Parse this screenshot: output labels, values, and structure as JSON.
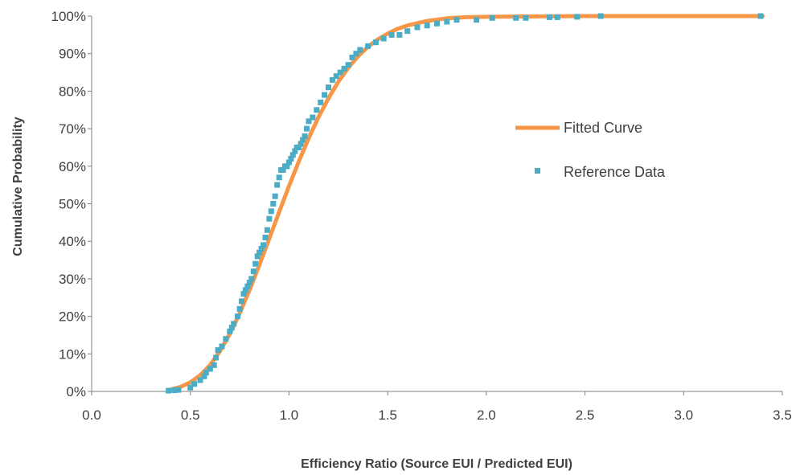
{
  "chart_data": {
    "type": "scatter",
    "xlabel": "Efficiency Ratio (Source EUI / Predicted EUI)",
    "ylabel": "Cumulative  Probability",
    "xlim": [
      0,
      3.5
    ],
    "ylim": [
      0,
      1
    ],
    "x_ticks": [
      "0.0",
      "0.5",
      "1.0",
      "1.5",
      "2.0",
      "2.5",
      "3.0",
      "3.5"
    ],
    "y_ticks": [
      "0%",
      "10%",
      "20%",
      "30%",
      "40%",
      "50%",
      "60%",
      "70%",
      "80%",
      "90%",
      "100%"
    ],
    "grid": false,
    "legend_position": "center-right",
    "series": [
      {
        "name": "Fitted Curve",
        "kind": "line",
        "color": "#f79646",
        "x": [
          0.4,
          0.45,
          0.5,
          0.55,
          0.6,
          0.65,
          0.7,
          0.75,
          0.8,
          0.85,
          0.9,
          0.95,
          1.0,
          1.05,
          1.1,
          1.15,
          1.2,
          1.25,
          1.3,
          1.35,
          1.4,
          1.45,
          1.5,
          1.55,
          1.6,
          1.7,
          1.8,
          1.9,
          2.0,
          2.2,
          2.5,
          3.0,
          3.4
        ],
        "y": [
          0.005,
          0.012,
          0.024,
          0.043,
          0.07,
          0.107,
          0.153,
          0.208,
          0.27,
          0.337,
          0.407,
          0.478,
          0.547,
          0.613,
          0.675,
          0.731,
          0.781,
          0.825,
          0.862,
          0.893,
          0.918,
          0.938,
          0.953,
          0.966,
          0.975,
          0.987,
          0.994,
          0.997,
          0.998,
          0.999,
          1.0,
          1.0,
          1.0
        ]
      },
      {
        "name": "Reference Data",
        "kind": "points",
        "color": "#4bacc6",
        "x": [
          0.39,
          0.42,
          0.44,
          0.5,
          0.52,
          0.55,
          0.57,
          0.58,
          0.6,
          0.62,
          0.63,
          0.64,
          0.66,
          0.68,
          0.7,
          0.71,
          0.72,
          0.74,
          0.75,
          0.76,
          0.77,
          0.78,
          0.79,
          0.8,
          0.81,
          0.82,
          0.83,
          0.84,
          0.85,
          0.86,
          0.87,
          0.88,
          0.89,
          0.9,
          0.91,
          0.92,
          0.93,
          0.94,
          0.95,
          0.96,
          0.97,
          0.98,
          0.99,
          1.0,
          1.01,
          1.02,
          1.03,
          1.04,
          1.05,
          1.06,
          1.07,
          1.08,
          1.09,
          1.1,
          1.12,
          1.14,
          1.16,
          1.18,
          1.2,
          1.22,
          1.24,
          1.26,
          1.28,
          1.3,
          1.32,
          1.34,
          1.36,
          1.4,
          1.44,
          1.48,
          1.52,
          1.56,
          1.6,
          1.65,
          1.7,
          1.75,
          1.8,
          1.85,
          1.95,
          2.03,
          2.15,
          2.2,
          2.32,
          2.36,
          2.46,
          2.58,
          3.39
        ],
        "y": [
          0.002,
          0.003,
          0.004,
          0.01,
          0.02,
          0.03,
          0.04,
          0.05,
          0.06,
          0.07,
          0.09,
          0.11,
          0.12,
          0.14,
          0.16,
          0.17,
          0.18,
          0.2,
          0.22,
          0.24,
          0.26,
          0.27,
          0.28,
          0.29,
          0.3,
          0.32,
          0.34,
          0.36,
          0.37,
          0.38,
          0.39,
          0.41,
          0.43,
          0.46,
          0.48,
          0.5,
          0.52,
          0.55,
          0.57,
          0.59,
          0.59,
          0.6,
          0.6,
          0.61,
          0.62,
          0.63,
          0.64,
          0.65,
          0.65,
          0.66,
          0.67,
          0.68,
          0.7,
          0.72,
          0.73,
          0.75,
          0.77,
          0.79,
          0.81,
          0.83,
          0.84,
          0.85,
          0.86,
          0.87,
          0.89,
          0.9,
          0.91,
          0.92,
          0.93,
          0.94,
          0.95,
          0.95,
          0.96,
          0.97,
          0.975,
          0.98,
          0.985,
          0.99,
          0.99,
          0.995,
          0.995,
          0.995,
          0.997,
          0.997,
          0.998,
          1.0,
          1.0
        ]
      }
    ]
  }
}
